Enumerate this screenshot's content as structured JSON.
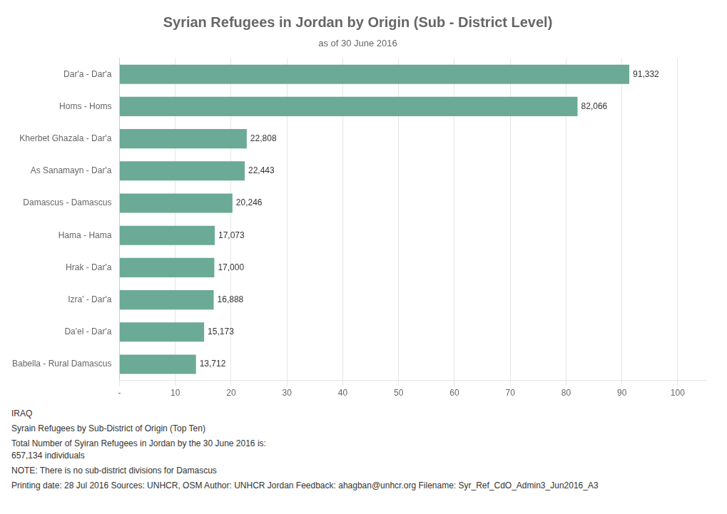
{
  "chart_data": {
    "type": "bar",
    "orientation": "horizontal",
    "title": "Syrian Refugees in Jordan by Origin (Sub - District Level)",
    "subtitle": "as of 30 June 2016",
    "annotations": [
      "IRAQ",
      "Syrain Refugees by Sub-District of Origin (Top Ten)",
      "Total Number of Syiran Refugees in Jordan by the 30 June 2016 is:\n657,134 individuals",
      "NOTE: There is no sub-district divisions for Damascus",
      "Printing date: 28 Jul 2016    Sources: UNHCR, OSM    Author: UNHCR Jordan    Feedback: ahagban@unhcr.org    Filename: Syr_Ref_CdO_Admin3_Jun2016_A3"
    ],
    "categories": [
      "Dar'a - Dar'a",
      "Homs - Homs",
      "Kherbet Ghazala - Dar'a",
      "As Sanamayn - Dar'a",
      "Damascus - Damascus",
      "Hama - Hama",
      "Hrak - Dar'a",
      "Izra' - Dar'a",
      "Da'el - Dar'a",
      "Babella - Rural Damascus"
    ],
    "values": [
      91332,
      82066,
      22808,
      22443,
      20246,
      17073,
      17000,
      16888,
      15173,
      13712
    ],
    "value_labels": [
      "91,332",
      "82,066",
      "22,808",
      "22,443",
      "20,246",
      "17,073",
      "17,000",
      "16,888",
      "15,173",
      "13,712"
    ],
    "data_labels": true,
    "color": "#6aaa96",
    "xlim": [
      0,
      105000
    ],
    "xticks": [
      {
        "value": 0,
        "label": "-"
      },
      {
        "value": 10000,
        "label": "10"
      },
      {
        "value": 20000,
        "label": "20"
      },
      {
        "value": 30000,
        "label": "30"
      },
      {
        "value": 40000,
        "label": "40"
      },
      {
        "value": 50000,
        "label": "50"
      },
      {
        "value": 60000,
        "label": "60"
      },
      {
        "value": 70000,
        "label": "70"
      },
      {
        "value": 80000,
        "label": "80"
      },
      {
        "value": 90000,
        "label": "90"
      },
      {
        "value": 100000,
        "label": "100"
      }
    ],
    "grid": true
  }
}
